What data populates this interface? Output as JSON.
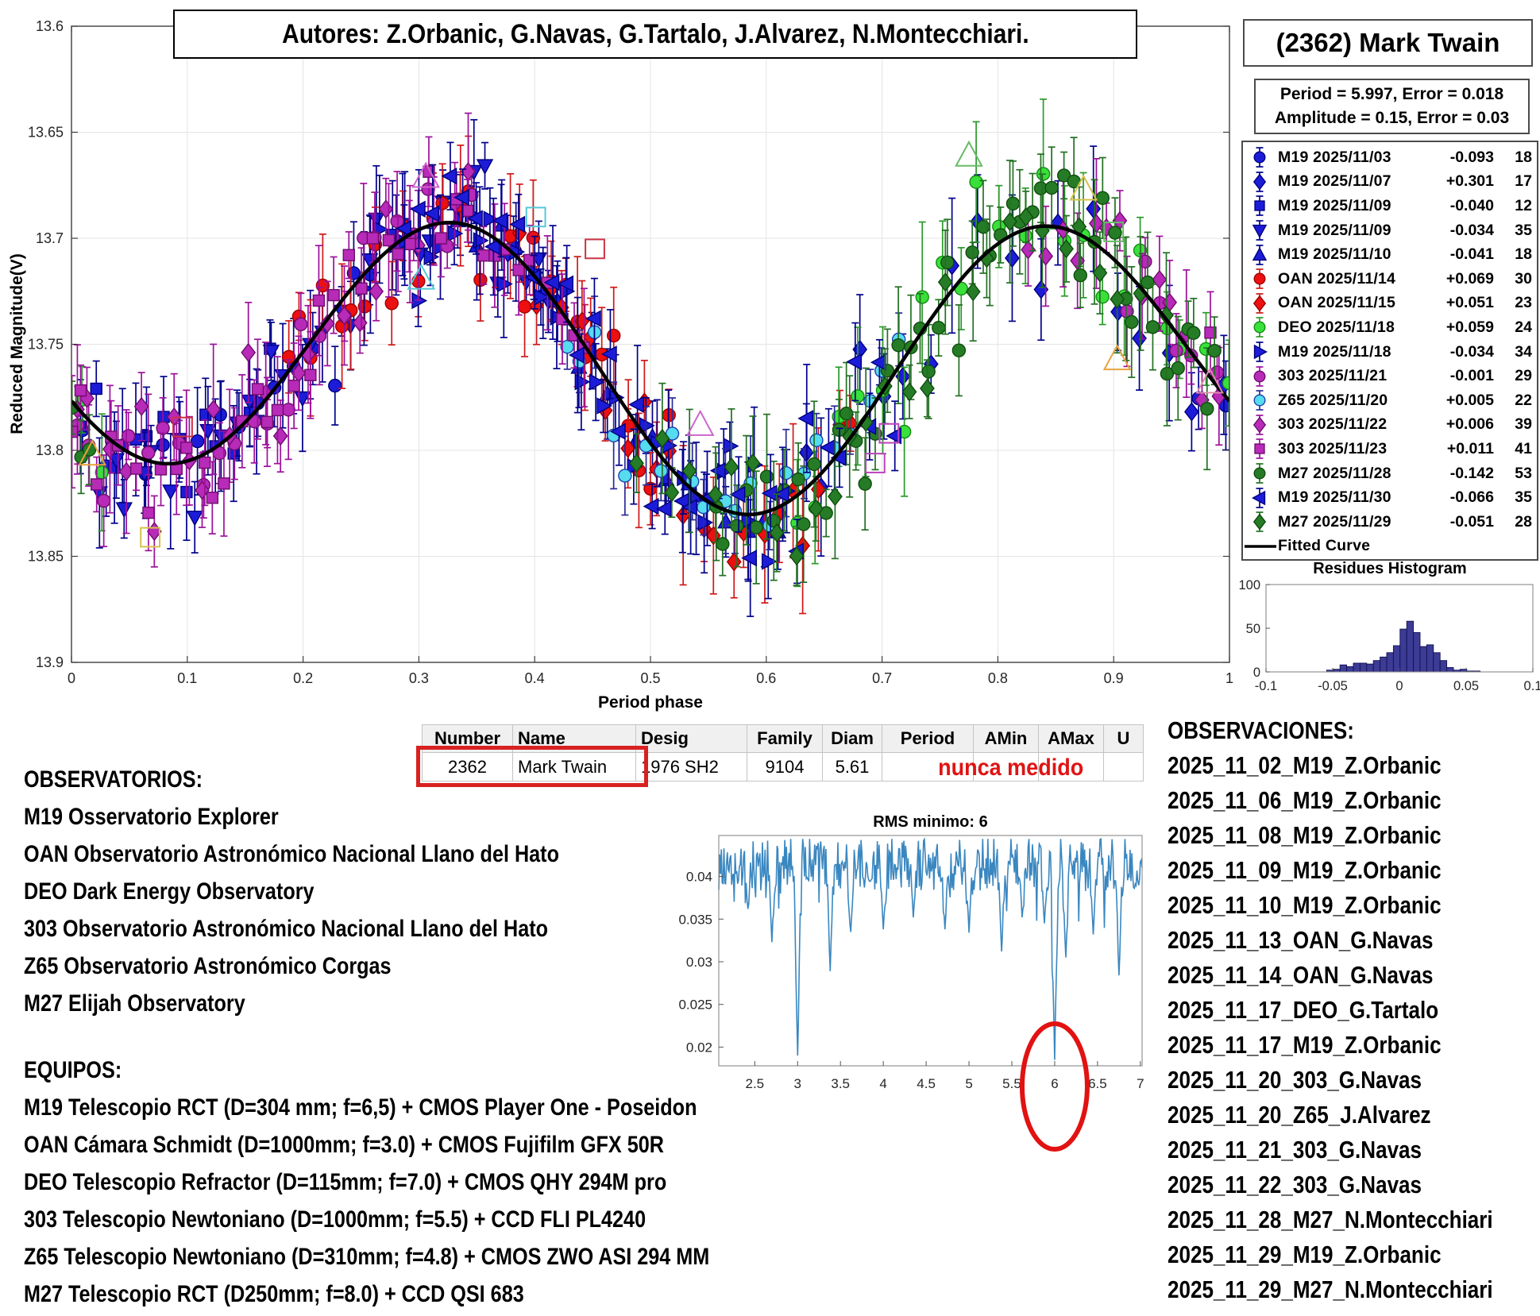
{
  "title_box": {
    "text": "Autores: Z.Orbanic, G.Navas, G.Tartalo, J.Alvarez, N.Montecchiari."
  },
  "object_box": {
    "title": "(2362) Mark Twain"
  },
  "fit_box": {
    "line1": "Period =  5.997, Error = 0.018",
    "line2": "Amplitude = 0.15, Error = 0.03"
  },
  "legend": {
    "fitted_label": "Fitted Curve"
  },
  "chart_data": [
    {
      "type": "scatter",
      "xlabel": "Period phase",
      "ylabel": "Reduced Magnitude(V)",
      "xlim": [
        0,
        1
      ],
      "ylim_top": 13.6,
      "ylim_bottom": 13.9,
      "xticks": [
        0,
        0.1,
        0.2,
        0.3,
        0.4,
        0.5,
        0.6,
        0.7,
        0.8,
        0.9,
        1
      ],
      "yticks": [
        13.6,
        13.65,
        13.7,
        13.75,
        13.8,
        13.85,
        13.9
      ],
      "fitted_curve": {
        "m0": 13.756,
        "A1": 0.012,
        "p1": 0.095,
        "A2": 0.0623,
        "p2": 0.334
      },
      "series": [
        {
          "label": "M19 2025/11/03",
          "offset": "-0.093",
          "count": 18,
          "marker": "circle",
          "fill": "#1c1cd8",
          "edge": "#000080",
          "bar": "#00008b",
          "window": [
            0.97,
            1.27
          ],
          "sigma": 0.013,
          "seed": 11,
          "ebar": 1.0
        },
        {
          "label": "M19 2025/11/07",
          "offset": "+0.301",
          "count": 17,
          "marker": "diamond",
          "fill": "#1c1cd8",
          "edge": "#000080",
          "bar": "#00008b",
          "window": [
            0.62,
            1.0
          ],
          "sigma": 0.016,
          "seed": 22,
          "ebar": 1.25
        },
        {
          "label": "M19 2025/11/09",
          "offset": "-0.040",
          "count": 12,
          "marker": "square",
          "fill": "#1c1cd8",
          "edge": "#000080",
          "bar": "#00008b",
          "window": [
            0.0,
            0.18
          ],
          "sigma": 0.012,
          "seed": 33,
          "ebar": 1.0
        },
        {
          "label": "M19 2025/11/09",
          "offset": "-0.034",
          "count": 35,
          "marker": "triangle-down",
          "fill": "#1c1cd8",
          "edge": "#000080",
          "bar": "#00008b",
          "window": [
            0.02,
            0.42
          ],
          "sigma": 0.013,
          "seed": 44,
          "ebar": 1.0
        },
        {
          "label": "M19 2025/11/10",
          "offset": "-0.041",
          "count": 18,
          "marker": "triangle-up",
          "fill": "#1c1cd8",
          "edge": "#000080",
          "bar": "#00008b",
          "window": [
            0.33,
            0.62
          ],
          "sigma": 0.013,
          "seed": 55,
          "ebar": 1.1
        },
        {
          "label": "OAN 2025/11/14",
          "offset": "+0.069",
          "count": 30,
          "marker": "circle",
          "fill": "#ec1010",
          "edge": "#a00000",
          "bar": "#d01818",
          "window": [
            0.18,
            0.52
          ],
          "sigma": 0.015,
          "seed": 66,
          "ebar": 1.1
        },
        {
          "label": "OAN 2025/11/15",
          "offset": "+0.051",
          "count": 23,
          "marker": "diamond",
          "fill": "#ec1010",
          "edge": "#a00000",
          "bar": "#d01818",
          "window": [
            0.38,
            0.68
          ],
          "sigma": 0.016,
          "seed": 77,
          "ebar": 1.2
        },
        {
          "label": "DEO 2025/11/18",
          "offset": "+0.059",
          "count": 24,
          "marker": "circle",
          "fill": "#3ae03a",
          "edge": "#128c12",
          "bar": "#2a9a2a",
          "window": [
            0.62,
            1.04
          ],
          "sigma": 0.015,
          "seed": 88,
          "ebar": 1.3
        },
        {
          "label": "M19 2025/11/18",
          "offset": "-0.034",
          "count": 34,
          "marker": "triangle-right",
          "fill": "#1c1cd8",
          "edge": "#000080",
          "bar": "#00008b",
          "window": [
            0.25,
            0.62
          ],
          "sigma": 0.013,
          "seed": 99,
          "ebar": 1.0
        },
        {
          "label": "303 2025/11/21",
          "offset": "-0.001",
          "count": 29,
          "marker": "circle",
          "fill": "#b82ab8",
          "edge": "#6f0d6f",
          "bar": "#9c109c",
          "window": [
            0.9,
            1.35
          ],
          "sigma": 0.013,
          "seed": 111,
          "ebar": 1.0
        },
        {
          "label": "Z65 2025/11/20",
          "offset": "+0.005",
          "count": 22,
          "marker": "circle",
          "fill": "#55dcee",
          "edge": "#1c3fae",
          "bar": "#2a2a9a",
          "window": [
            0.42,
            0.72
          ],
          "sigma": 0.012,
          "seed": 122,
          "ebar": 0.9
        },
        {
          "label": "303 2025/11/22",
          "offset": "+0.006",
          "count": 39,
          "marker": "diamond",
          "fill": "#b82ab8",
          "edge": "#6f0d6f",
          "bar": "#9c109c",
          "window": [
            0.82,
            1.35
          ],
          "sigma": 0.014,
          "seed": 133,
          "ebar": 1.1
        },
        {
          "label": "303 2025/11/23",
          "offset": "+0.011",
          "count": 41,
          "marker": "square",
          "fill": "#b82ab8",
          "edge": "#6f0d6f",
          "bar": "#9c109c",
          "window": [
            0.98,
            1.45
          ],
          "sigma": 0.013,
          "seed": 144,
          "ebar": 1.0
        },
        {
          "label": "M27 2025/11/28",
          "offset": "-0.142",
          "count": 53,
          "marker": "circle",
          "fill": "#267c26",
          "edge": "#0d4d0d",
          "bar": "#237023",
          "window": [
            0.55,
            1.02
          ],
          "sigma": 0.014,
          "seed": 155,
          "ebar": 1.1
        },
        {
          "label": "M19 2025/11/30",
          "offset": "-0.066",
          "count": 35,
          "marker": "triangle-left",
          "fill": "#1c1cd8",
          "edge": "#000080",
          "bar": "#00008b",
          "window": [
            0.28,
            0.72
          ],
          "sigma": 0.013,
          "seed": 166,
          "ebar": 1.0
        },
        {
          "label": "M27 2025/11/29",
          "offset": "-0.051",
          "count": 28,
          "marker": "diamond",
          "fill": "#267c26",
          "edge": "#0d4d0d",
          "bar": "#237023",
          "window": [
            0.48,
            0.95
          ],
          "sigma": 0.014,
          "seed": 177,
          "ebar": 1.1
        }
      ],
      "highlights": [
        {
          "shape": "triangle",
          "color": "#e8a33d",
          "phase": 0.018,
          "mag": 13.802
        },
        {
          "shape": "square",
          "color": "#d4c24a",
          "phase": 0.068,
          "mag": 13.841
        },
        {
          "shape": "square",
          "color": "#cc3344",
          "phase": 0.096,
          "mag": 13.789
        },
        {
          "shape": "triangle",
          "color": "#cc66cc",
          "phase": 0.306,
          "mag": 13.671
        },
        {
          "shape": "triangle",
          "color": "#55c8d8",
          "phase": 0.302,
          "mag": 13.719
        },
        {
          "shape": "square",
          "color": "#55c8d8",
          "phase": 0.401,
          "mag": 13.69
        },
        {
          "shape": "square",
          "color": "#cc3344",
          "phase": 0.452,
          "mag": 13.705
        },
        {
          "shape": "triangle",
          "color": "#cc66cc",
          "phase": 0.543,
          "mag": 13.788
        },
        {
          "shape": "square",
          "color": "#bb44bb",
          "phase": 0.694,
          "mag": 13.806
        },
        {
          "shape": "square",
          "color": "#bb44bb",
          "phase": 0.706,
          "mag": 13.792
        },
        {
          "shape": "triangle",
          "color": "#66bb66",
          "phase": 0.775,
          "mag": 13.661
        },
        {
          "shape": "triangle",
          "color": "#d4c24a",
          "phase": 0.874,
          "mag": 13.677
        },
        {
          "shape": "square",
          "color": "#66bb66",
          "phase": 0.9,
          "mag": 13.697
        },
        {
          "shape": "triangle",
          "color": "#e8a33d",
          "phase": 0.903,
          "mag": 13.757
        },
        {
          "shape": "triangle",
          "color": "#e08bb0",
          "phase": 0.983,
          "mag": 13.768
        }
      ]
    },
    {
      "type": "histogram",
      "title": "Residues Histogram",
      "bin_start": -0.052,
      "bin_width": 0.005,
      "values": [
        2,
        3,
        8,
        6,
        10,
        10,
        9,
        13,
        17,
        22,
        30,
        49,
        58,
        45,
        29,
        31,
        22,
        13,
        5,
        2,
        3,
        1,
        1
      ],
      "xlim": [
        -0.1,
        0.1
      ],
      "ylim": [
        0,
        100
      ],
      "xticks": [
        -0.1,
        -0.05,
        0,
        0.05,
        0.1
      ],
      "yticks": [
        0,
        50,
        100
      ],
      "bar_fill": "#3c3c96",
      "bar_edge": "#101050"
    },
    {
      "type": "line",
      "title": "RMS minimo: 6",
      "xlim": [
        2.08,
        7.02
      ],
      "ylim": [
        0.0178,
        0.0448
      ],
      "xticks": [
        2.5,
        3,
        3.5,
        4,
        4.5,
        5,
        5.5,
        6,
        6.5,
        7
      ],
      "yticks": [
        0.02,
        0.025,
        0.03,
        0.035,
        0.04
      ],
      "color": "#3a87c0",
      "baseline": 0.0415,
      "noise": 0.0032,
      "seed": 2024,
      "dips": [
        {
          "x": 2.42,
          "y": 0.0362
        },
        {
          "x": 2.7,
          "y": 0.0323
        },
        {
          "x": 3.0,
          "y": 0.019
        },
        {
          "x": 3.38,
          "y": 0.0289
        },
        {
          "x": 3.62,
          "y": 0.0335
        },
        {
          "x": 4.0,
          "y": 0.0338
        },
        {
          "x": 4.35,
          "y": 0.0352
        },
        {
          "x": 4.72,
          "y": 0.0338
        },
        {
          "x": 5.0,
          "y": 0.0334
        },
        {
          "x": 5.38,
          "y": 0.0312
        },
        {
          "x": 5.62,
          "y": 0.0352
        },
        {
          "x": 5.88,
          "y": 0.0345
        },
        {
          "x": 6.0,
          "y": 0.0185
        },
        {
          "x": 6.13,
          "y": 0.0305
        },
        {
          "x": 6.45,
          "y": 0.0332
        },
        {
          "x": 6.75,
          "y": 0.0284
        }
      ],
      "min_annotation": {
        "x": 6,
        "circle_color": "#e21212"
      }
    }
  ],
  "table": {
    "headers": [
      "Number",
      "Name",
      "Desig",
      "Family",
      "Diam",
      "Period",
      "AMin",
      "AMax",
      "U"
    ],
    "row": [
      "2362",
      "Mark Twain",
      "1976 SH2",
      "9104",
      "5.61",
      "",
      "",
      "",
      ""
    ],
    "note": "nunca medido"
  },
  "observatorios": {
    "heading": "OBSERVATORIOS:",
    "items": [
      "M19 Osservatorio Explorer",
      "OAN Observatorio Astronómico Nacional Llano del Hato",
      "DEO Dark Energy Observatory",
      "303 Observatorio Astronómico Nacional Llano del Hato",
      "Z65 Observatorio Astronómico Corgas",
      "M27 Elijah Observatory"
    ]
  },
  "equipos": {
    "heading": "EQUIPOS:",
    "items": [
      "M19 Telescopio RCT (D=304 mm; f=6,5) + CMOS Player One - Poseidon",
      "OAN Cámara Schmidt (D=1000mm; f=3.0) + CMOS Fujifilm GFX 50R",
      "DEO Telescopio Refractor (D=115mm; f=7.0) + CMOS QHY 294M pro",
      "303 Telescopio Newtoniano (D=1000mm; f=5.5) + CCD FLI PL4240",
      "Z65 Telescopio Newtoniano (D=310mm; f=4.8) + CMOS ZWO ASI 294 MM",
      "M27 Telescopio RCT (D250mm; f=8.0) + CCD QSI 683"
    ]
  },
  "observaciones": {
    "heading": "OBSERVACIONES:",
    "items": [
      "2025_11_02_M19_Z.Orbanic",
      "2025_11_06_M19_Z.Orbanic",
      "2025_11_08_M19_Z.Orbanic",
      "2025_11_09_M19_Z.Orbanic",
      "2025_11_10_M19_Z.Orbanic",
      "2025_11_13_OAN_G.Navas",
      "2025_11_14_OAN_G.Navas",
      "2025_11_17_DEO_G.Tartalo",
      "2025_11_17_M19_Z.Orbanic",
      "2025_11_20_303_G.Navas",
      "2025_11_20_Z65_J.Alvarez",
      "2025_11_21_303_G.Navas",
      "2025_11_22_303_G.Navas",
      "2025_11_28_M27_N.Montecchiari",
      "2025_11_29_M19_Z.Orbanic",
      "2025_11_29_M27_N.Montecchiari"
    ]
  }
}
